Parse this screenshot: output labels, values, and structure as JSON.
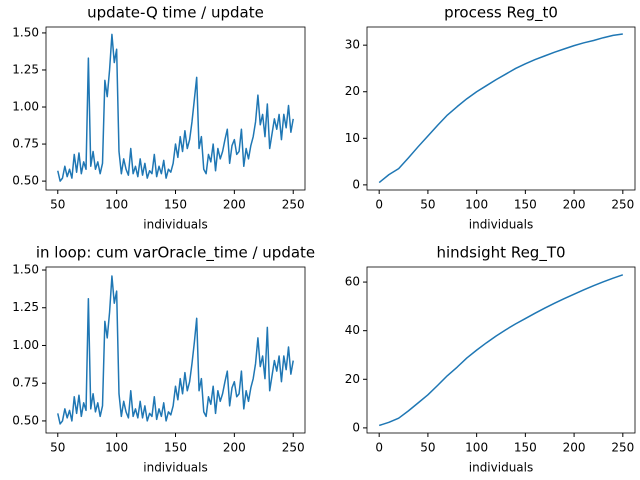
{
  "chart_data": [
    {
      "type": "line",
      "title": "update-Q time / update",
      "xlabel": "individuals",
      "x": [
        50,
        52,
        54,
        56,
        58,
        60,
        62,
        64,
        66,
        68,
        70,
        72,
        74,
        76,
        78,
        80,
        82,
        84,
        86,
        88,
        90,
        92,
        94,
        96,
        98,
        100,
        102,
        104,
        106,
        108,
        110,
        112,
        114,
        116,
        118,
        120,
        122,
        124,
        126,
        128,
        130,
        132,
        134,
        136,
        138,
        140,
        142,
        144,
        146,
        148,
        150,
        152,
        154,
        156,
        158,
        160,
        162,
        164,
        166,
        168,
        170,
        172,
        174,
        176,
        178,
        180,
        182,
        184,
        186,
        188,
        190,
        192,
        194,
        196,
        198,
        200,
        202,
        204,
        206,
        208,
        210,
        212,
        214,
        216,
        218,
        220,
        222,
        224,
        226,
        228,
        230,
        232,
        234,
        236,
        238,
        240,
        242,
        244,
        246,
        248,
        250
      ],
      "series": [
        {
          "color": "#1f77b4",
          "values": [
            0.57,
            0.5,
            0.52,
            0.6,
            0.53,
            0.58,
            0.52,
            0.68,
            0.56,
            0.69,
            0.55,
            0.63,
            0.58,
            1.33,
            0.6,
            0.7,
            0.58,
            0.63,
            0.55,
            0.62,
            1.18,
            1.07,
            1.25,
            1.49,
            1.3,
            1.39,
            0.7,
            0.55,
            0.65,
            0.58,
            0.54,
            0.72,
            0.55,
            0.6,
            0.53,
            0.65,
            0.54,
            0.62,
            0.52,
            0.57,
            0.55,
            0.68,
            0.53,
            0.6,
            0.55,
            0.64,
            0.52,
            0.58,
            0.56,
            0.62,
            0.75,
            0.66,
            0.8,
            0.7,
            0.84,
            0.72,
            0.78,
            0.9,
            1.05,
            1.2,
            0.72,
            0.8,
            0.58,
            0.55,
            0.68,
            0.63,
            0.75,
            0.57,
            0.72,
            0.65,
            0.7,
            0.78,
            0.85,
            0.62,
            0.74,
            0.78,
            0.68,
            0.7,
            0.85,
            0.6,
            0.72,
            0.65,
            0.74,
            0.8,
            0.9,
            1.08,
            0.88,
            0.95,
            0.8,
            1.02,
            0.72,
            0.82,
            0.92,
            0.85,
            0.95,
            0.78,
            0.95,
            0.86,
            1.01,
            0.83,
            0.92
          ]
        }
      ],
      "xlim": [
        40,
        260
      ],
      "xticks": [
        50,
        100,
        150,
        200,
        250
      ],
      "ylim": [
        0.44,
        1.54
      ],
      "yticks": [
        {
          "value": 0.5,
          "label": "0.50"
        },
        {
          "value": 0.75,
          "label": "0.75"
        },
        {
          "value": 1.0,
          "label": "1.00"
        },
        {
          "value": 1.25,
          "label": "1.25"
        },
        {
          "value": 1.5,
          "label": "1.50"
        }
      ]
    },
    {
      "type": "line",
      "title": "process Reg_t0",
      "xlabel": "individuals",
      "x": [
        0,
        10,
        20,
        30,
        40,
        50,
        60,
        70,
        80,
        90,
        100,
        110,
        120,
        130,
        140,
        150,
        160,
        170,
        180,
        190,
        200,
        210,
        220,
        230,
        240,
        250
      ],
      "series": [
        {
          "color": "#1f77b4",
          "values": [
            0.5,
            2.2,
            3.5,
            5.8,
            8.2,
            10.5,
            12.8,
            15.0,
            16.8,
            18.5,
            20.0,
            21.3,
            22.6,
            23.8,
            25.0,
            26.0,
            26.9,
            27.7,
            28.5,
            29.2,
            29.9,
            30.5,
            31.0,
            31.6,
            32.1,
            32.4
          ]
        }
      ],
      "xlim": [
        -12.5,
        262.5
      ],
      "xticks": [
        0,
        50,
        100,
        150,
        200,
        250
      ],
      "ylim": [
        -1.1,
        33.9
      ],
      "yticks": [
        0,
        10,
        20,
        30
      ]
    },
    {
      "type": "line",
      "title": "in loop: cum varOracle_time / update",
      "xlabel": "individuals",
      "x": [
        50,
        52,
        54,
        56,
        58,
        60,
        62,
        64,
        66,
        68,
        70,
        72,
        74,
        76,
        78,
        80,
        82,
        84,
        86,
        88,
        90,
        92,
        94,
        96,
        98,
        100,
        102,
        104,
        106,
        108,
        110,
        112,
        114,
        116,
        118,
        120,
        122,
        124,
        126,
        128,
        130,
        132,
        134,
        136,
        138,
        140,
        142,
        144,
        146,
        148,
        150,
        152,
        154,
        156,
        158,
        160,
        162,
        164,
        166,
        168,
        170,
        172,
        174,
        176,
        178,
        180,
        182,
        184,
        186,
        188,
        190,
        192,
        194,
        196,
        198,
        200,
        202,
        204,
        206,
        208,
        210,
        212,
        214,
        216,
        218,
        220,
        222,
        224,
        226,
        228,
        230,
        232,
        234,
        236,
        238,
        240,
        242,
        244,
        246,
        248,
        250
      ],
      "series": [
        {
          "color": "#1f77b4",
          "values": [
            0.55,
            0.48,
            0.5,
            0.58,
            0.52,
            0.57,
            0.5,
            0.66,
            0.55,
            0.67,
            0.53,
            0.62,
            0.57,
            1.31,
            0.58,
            0.68,
            0.56,
            0.62,
            0.53,
            0.6,
            1.16,
            1.05,
            1.22,
            1.46,
            1.28,
            1.36,
            0.68,
            0.53,
            0.63,
            0.56,
            0.52,
            0.7,
            0.53,
            0.58,
            0.52,
            0.63,
            0.52,
            0.6,
            0.5,
            0.55,
            0.53,
            0.66,
            0.51,
            0.58,
            0.53,
            0.62,
            0.5,
            0.56,
            0.54,
            0.6,
            0.73,
            0.64,
            0.78,
            0.68,
            0.82,
            0.7,
            0.76,
            0.88,
            1.02,
            1.18,
            0.7,
            0.78,
            0.56,
            0.53,
            0.66,
            0.61,
            0.73,
            0.55,
            0.7,
            0.63,
            0.68,
            0.76,
            0.83,
            0.6,
            0.72,
            0.76,
            0.66,
            0.68,
            0.83,
            0.58,
            0.7,
            0.63,
            0.72,
            0.78,
            0.88,
            1.05,
            0.86,
            0.93,
            0.78,
            1.12,
            0.7,
            0.8,
            0.9,
            0.83,
            0.93,
            0.76,
            0.93,
            0.84,
            0.99,
            0.81,
            0.9
          ]
        }
      ],
      "xlim": [
        40,
        260
      ],
      "xticks": [
        50,
        100,
        150,
        200,
        250
      ],
      "ylim": [
        0.42,
        1.52
      ],
      "yticks": [
        {
          "value": 0.5,
          "label": "0.50"
        },
        {
          "value": 0.75,
          "label": "0.75"
        },
        {
          "value": 1.0,
          "label": "1.00"
        },
        {
          "value": 1.25,
          "label": "1.25"
        },
        {
          "value": 1.5,
          "label": "1.50"
        }
      ]
    },
    {
      "type": "line",
      "title": "hindsight Reg_T0",
      "xlabel": "individuals",
      "x": [
        0,
        10,
        20,
        30,
        40,
        50,
        60,
        70,
        80,
        90,
        100,
        110,
        120,
        130,
        140,
        150,
        160,
        170,
        180,
        190,
        200,
        210,
        220,
        230,
        240,
        250
      ],
      "series": [
        {
          "color": "#1f77b4",
          "values": [
            1.0,
            2.3,
            4.0,
            7.0,
            10.3,
            13.6,
            17.5,
            21.5,
            25.0,
            28.8,
            32.0,
            35.0,
            37.8,
            40.4,
            42.8,
            45.0,
            47.2,
            49.3,
            51.3,
            53.2,
            55.0,
            56.8,
            58.5,
            60.1,
            61.6,
            63.0
          ]
        }
      ],
      "xlim": [
        -12.5,
        262.5
      ],
      "xticks": [
        0,
        50,
        100,
        150,
        200,
        250
      ],
      "ylim": [
        -2.1,
        66.2
      ],
      "yticks": [
        0,
        20,
        40,
        60
      ]
    }
  ]
}
